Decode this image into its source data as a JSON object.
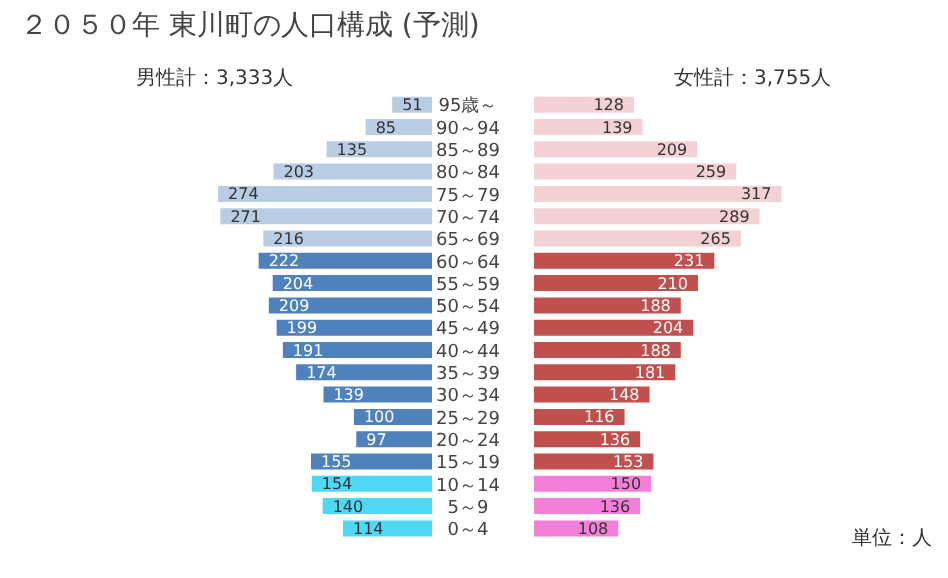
{
  "chart_data": [
    {
      "type": "bar",
      "orientation": "horizontal",
      "title": "２０５０年 東川町の人口構成 (予測)",
      "subtitle": "男性計：3,333人",
      "categories": [
        "95歳～",
        "90～94",
        "85～89",
        "80～84",
        "75～79",
        "70～74",
        "65～69",
        "60～64",
        "55～59",
        "50～54",
        "45～49",
        "40～44",
        "35～39",
        "30～34",
        "25～29",
        "20～24",
        "15～19",
        "10～14",
        "5～9",
        "0～4"
      ],
      "values": [
        51,
        85,
        135,
        203,
        274,
        271,
        216,
        222,
        204,
        209,
        199,
        191,
        174,
        139,
        100,
        97,
        155,
        154,
        140,
        114
      ],
      "colors": [
        "#b8cce4",
        "#b8cce4",
        "#b8cce4",
        "#b8cce4",
        "#b8cce4",
        "#b8cce4",
        "#b8cce4",
        "#4f81bd",
        "#4f81bd",
        "#4f81bd",
        "#4f81bd",
        "#4f81bd",
        "#4f81bd",
        "#4f81bd",
        "#4f81bd",
        "#4f81bd",
        "#4f81bd",
        "#4dd9f5",
        "#4dd9f5",
        "#4dd9f5"
      ],
      "data_labels": true,
      "tick_labels": false
    },
    {
      "type": "bar",
      "orientation": "horizontal",
      "subtitle": "女性計：3,755人",
      "categories": [
        "95歳～",
        "90～94",
        "85～89",
        "80～84",
        "75～79",
        "70～74",
        "65～69",
        "60～64",
        "55～59",
        "50～54",
        "45～49",
        "40～44",
        "35～39",
        "30～34",
        "25～29",
        "20～24",
        "15～19",
        "10～14",
        "5～9",
        "0～4"
      ],
      "values": [
        128,
        139,
        209,
        259,
        317,
        289,
        265,
        231,
        210,
        188,
        204,
        188,
        181,
        148,
        116,
        136,
        153,
        150,
        136,
        108
      ],
      "colors": [
        "#f2d0d4",
        "#f2d0d4",
        "#f2d0d4",
        "#f2d0d4",
        "#f2d0d4",
        "#f2d0d4",
        "#f2d0d4",
        "#c0504d",
        "#c0504d",
        "#c0504d",
        "#c0504d",
        "#c0504d",
        "#c0504d",
        "#c0504d",
        "#c0504d",
        "#c0504d",
        "#c0504d",
        "#f47fd8",
        "#f47fd8",
        "#f47fd8"
      ],
      "data_labels": true,
      "tick_labels": "y",
      "annotations": [
        "単位：人"
      ]
    }
  ]
}
